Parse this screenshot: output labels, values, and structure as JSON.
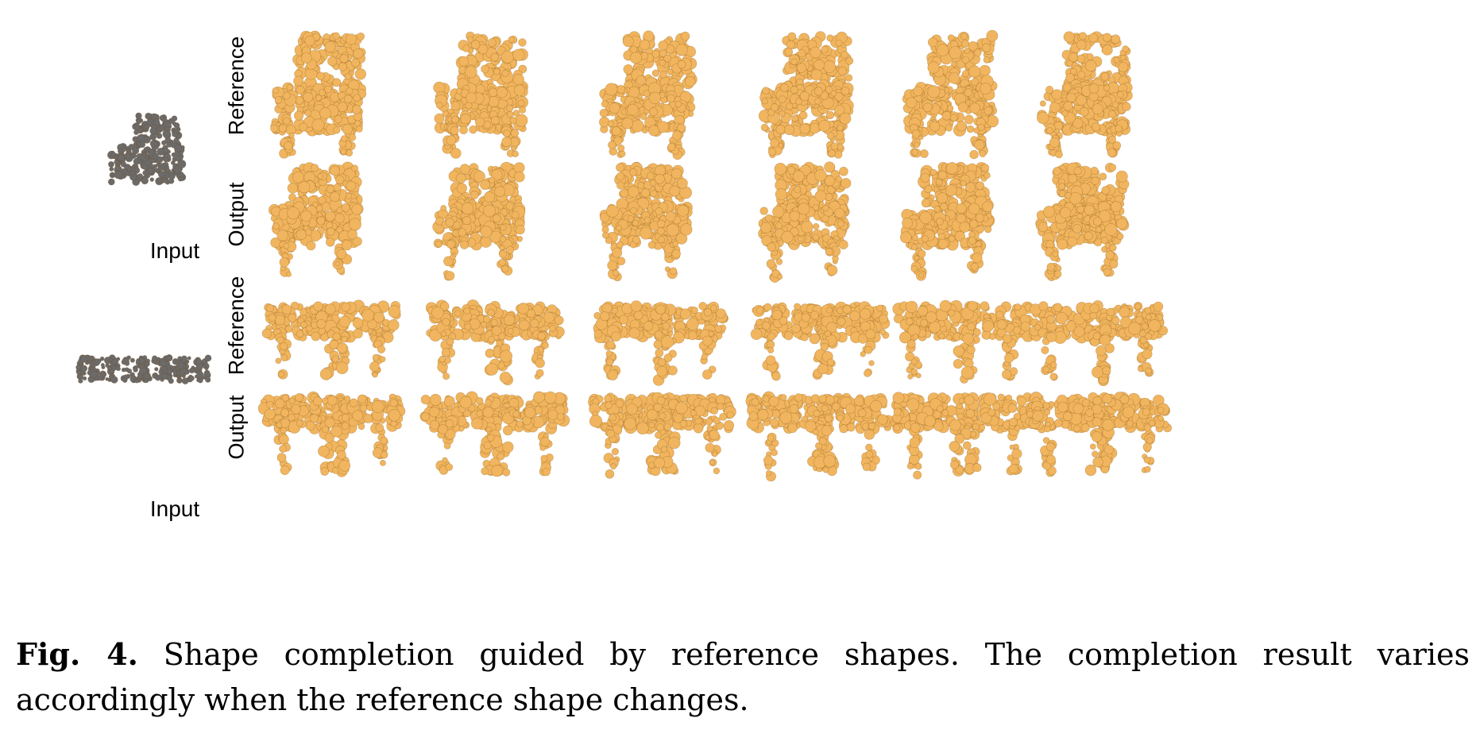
{
  "figure": {
    "input_label_top": "Input",
    "input_label_bottom": "Input",
    "row_labels": [
      "Reference",
      "Output",
      "Reference",
      "Output"
    ],
    "chair_color": "#F0B55E",
    "input_color": "#6B6B6B"
  },
  "caption": {
    "fig_number": "Fig. 4.",
    "text": "Shape completion guided by reference shapes. The completion result varies accordingly when the reference shape changes."
  }
}
